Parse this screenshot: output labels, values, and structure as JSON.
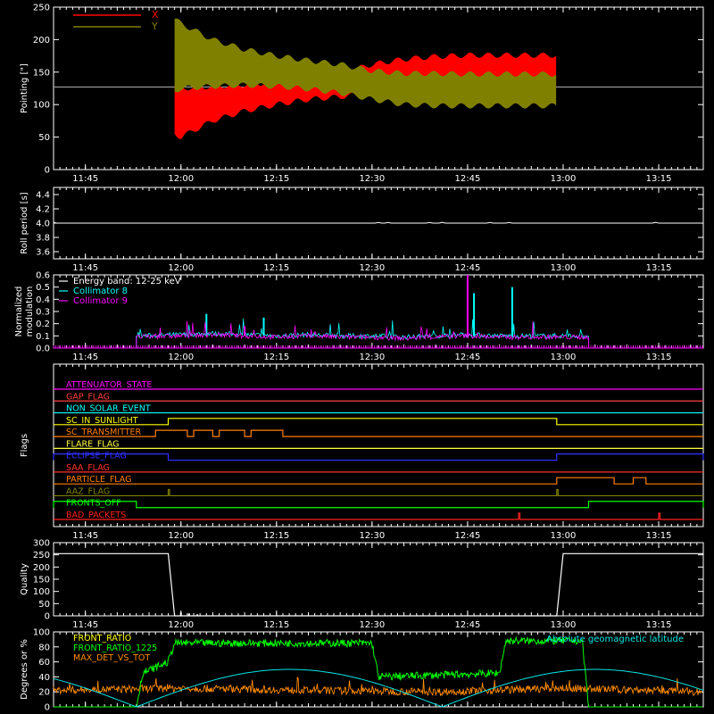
{
  "colors": {
    "background": "#000000",
    "axis": "#ffffff",
    "x_pointing": "#ff0000",
    "y_pointing": "#808000",
    "collimator8": "#00ffff",
    "collimator9": "#ff00ff",
    "green": "#00ff00",
    "orange": "#ff8c00",
    "cyan": "#00e5e5"
  },
  "time_axis": {
    "start": "11:40",
    "end": "13:22",
    "ticks": [
      "11:45",
      "12:00",
      "12:15",
      "12:30",
      "12:45",
      "13:00",
      "13:15"
    ]
  },
  "chart_data": [
    {
      "id": "pointing",
      "type": "area",
      "ylabel": "Pointing [\"]",
      "ylim": [
        0,
        250
      ],
      "yticks": [
        0,
        50,
        100,
        150,
        200,
        250
      ],
      "x_range": [
        "11:40",
        "13:22"
      ],
      "reference_line": {
        "value": 127,
        "from": "11:40",
        "to": "13:22"
      },
      "legend": {
        "placement": "top-left",
        "entries": [
          "X",
          "Y"
        ]
      },
      "series": [
        {
          "name": "X",
          "x": [
            "11:59",
            "12:00",
            "12:05",
            "12:10",
            "12:15",
            "12:20",
            "12:25",
            "12:30",
            "12:35",
            "12:40",
            "12:45",
            "12:50",
            "12:55",
            "12:59"
          ],
          "upper": [
            130,
            125,
            128,
            131,
            135,
            140,
            148,
            162,
            170,
            174,
            176,
            176,
            176,
            176
          ],
          "lower": [
            55,
            50,
            75,
            90,
            100,
            108,
            112,
            118,
            123,
            126,
            126,
            127,
            127,
            127
          ]
        },
        {
          "name": "Y",
          "x": [
            "11:59",
            "12:00",
            "12:05",
            "12:10",
            "12:15",
            "12:20",
            "12:25",
            "12:30",
            "12:35",
            "12:40",
            "12:45",
            "12:50",
            "12:55",
            "12:59"
          ],
          "upper": [
            232,
            225,
            200,
            185,
            175,
            168,
            162,
            152,
            148,
            148,
            147,
            147,
            147,
            147
          ],
          "lower": [
            120,
            125,
            128,
            130,
            128,
            124,
            118,
            108,
            100,
            98,
            98,
            98,
            98,
            98
          ]
        }
      ]
    },
    {
      "id": "roll-period",
      "type": "line",
      "ylabel": "Roll period [s]",
      "ylim": [
        3.5,
        4.5
      ],
      "yticks": [
        3.6,
        3.8,
        4.0,
        4.2,
        4.4
      ],
      "series": [
        {
          "x": [
            "11:40",
            "12:00",
            "12:30",
            "13:00",
            "13:22"
          ],
          "values": [
            4.0,
            4.0,
            4.0,
            4.0,
            4.0
          ]
        }
      ]
    },
    {
      "id": "modulation",
      "type": "line",
      "ylabel": [
        "Normalized",
        "modulation"
      ],
      "ylim": [
        0,
        0.6
      ],
      "yticks": [
        0.0,
        0.1,
        0.2,
        0.3,
        0.4,
        0.5,
        0.6
      ],
      "legend": {
        "placement": "top-left",
        "entries": [
          "Energy band: 12-25 keV",
          "Collimator 8",
          "Collimator 9"
        ]
      },
      "series": [
        {
          "name": "Collimator 8",
          "x": [
            "11:53",
            "12:00",
            "12:05",
            "12:10",
            "12:15",
            "12:20",
            "12:25",
            "12:30",
            "12:35",
            "12:40",
            "12:45",
            "12:50",
            "12:55",
            "13:00",
            "13:04"
          ],
          "values": [
            0.1,
            0.11,
            0.12,
            0.11,
            0.1,
            0.11,
            0.1,
            0.1,
            0.09,
            0.1,
            0.11,
            0.1,
            0.1,
            0.1,
            0.1
          ],
          "spikes": [
            {
              "x": "12:04",
              "value": 0.28
            },
            {
              "x": "12:13",
              "value": 0.25
            },
            {
              "x": "12:46",
              "value": 0.45
            },
            {
              "x": "12:52",
              "value": 0.5
            }
          ]
        },
        {
          "name": "Collimator 9",
          "x": [
            "11:53",
            "12:00",
            "12:05",
            "12:10",
            "12:15",
            "12:20",
            "12:25",
            "12:30",
            "12:35",
            "12:40",
            "12:45",
            "12:50",
            "12:55",
            "13:00",
            "13:04"
          ],
          "values": [
            0.09,
            0.1,
            0.11,
            0.1,
            0.09,
            0.1,
            0.09,
            0.09,
            0.08,
            0.09,
            0.1,
            0.09,
            0.09,
            0.09,
            0.09
          ],
          "spikes": [
            {
              "x": "12:45",
              "value": 0.6
            },
            {
              "x": "12:10",
              "value": 0.18
            }
          ]
        }
      ]
    },
    {
      "id": "flags",
      "type": "line",
      "ylabel": "Flags",
      "series": [
        {
          "name": "ATTENUATOR_STATE",
          "color": "#ff00ff",
          "segments": []
        },
        {
          "name": "GAP_FLAG",
          "color": "#ff4040",
          "segments": []
        },
        {
          "name": "NON_SOLAR_EVENT",
          "color": "#00ffff",
          "segments": []
        },
        {
          "name": "SC_IN_SUNLIGHT",
          "color": "#ffff00",
          "segments": [
            {
              "from": "11:58",
              "to": "12:59"
            }
          ]
        },
        {
          "name": "SC_TRANSMITTER",
          "color": "#ff8000",
          "segments": [
            {
              "from": "11:56",
              "to": "12:01"
            },
            {
              "from": "12:02",
              "to": "12:05"
            },
            {
              "from": "12:06",
              "to": "12:10"
            },
            {
              "from": "12:11",
              "to": "12:16"
            }
          ]
        },
        {
          "name": "FLARE_FLAG",
          "color": "#ffff40",
          "segments": []
        },
        {
          "name": "ECLIPSE_FLAG",
          "color": "#3030ff",
          "segments": [
            {
              "from": "11:40",
              "to": "11:58"
            },
            {
              "from": "12:59",
              "to": "13:22"
            }
          ]
        },
        {
          "name": "SAA_FLAG",
          "color": "#ff3030",
          "segments": []
        },
        {
          "name": "PARTICLE_FLAG",
          "color": "#ff8000",
          "segments": [
            {
              "from": "12:59",
              "to": "13:08"
            },
            {
              "from": "13:11",
              "to": "13:13"
            }
          ]
        },
        {
          "name": "AAZ_FLAG",
          "color": "#808000",
          "segments": [
            {
              "from": "11:58",
              "to": "11:58"
            },
            {
              "from": "12:59",
              "to": "12:59"
            }
          ]
        },
        {
          "name": "FRONTS_OFF",
          "color": "#00ff00",
          "segments": [
            {
              "from": "11:40",
              "to": "11:53"
            },
            {
              "from": "13:04",
              "to": "13:22"
            }
          ]
        },
        {
          "name": "BAD_PACKETS",
          "color": "#ff2020",
          "segments": [
            {
              "from": "12:53",
              "to": "12:53"
            },
            {
              "from": "13:15",
              "to": "13:15"
            }
          ]
        }
      ]
    },
    {
      "id": "quality",
      "type": "line",
      "ylabel": "Quality",
      "ylim": [
        0,
        300
      ],
      "yticks": [
        0,
        50,
        100,
        150,
        200,
        250,
        300
      ],
      "series": [
        {
          "x": [
            "11:40",
            "11:58",
            "11:59",
            "12:59",
            "13:00",
            "13:22"
          ],
          "values": [
            255,
            255,
            0,
            0,
            255,
            255
          ]
        }
      ]
    },
    {
      "id": "ratios",
      "type": "line",
      "ylabel": "Degrees or %",
      "ylim": [
        0,
        100
      ],
      "yticks": [
        0,
        20,
        40,
        60,
        80,
        100
      ],
      "legend": {
        "placement": "top-left",
        "entries": [
          "FRONT_RATIO",
          "FRONT_RATIO_1225",
          "MAX_DET_VS_TOT",
          "Absolute geomagnetic latitude"
        ]
      },
      "series": [
        {
          "name": "FRONT_RATIO",
          "x": [
            "11:40",
            "11:53",
            "11:54",
            "11:58",
            "11:59",
            "12:30",
            "12:31",
            "12:50",
            "12:51",
            "13:03",
            "13:04",
            "13:22"
          ],
          "values": [
            0,
            0,
            45,
            60,
            85,
            85,
            40,
            45,
            88,
            88,
            0,
            0
          ]
        },
        {
          "name": "FRONT_RATIO_1225",
          "x": [
            "11:53",
            "11:58",
            "12:30",
            "12:50",
            "13:03"
          ],
          "values": [
            42,
            80,
            38,
            82,
            85
          ]
        },
        {
          "name": "MAX_DET_VS_TOT",
          "x": [
            "11:40",
            "12:00",
            "12:20",
            "12:40",
            "13:00",
            "13:22"
          ],
          "values": [
            22,
            25,
            22,
            20,
            25,
            20
          ]
        },
        {
          "name": "Absolute geomagnetic latitude",
          "x": [
            "11:40",
            "11:53",
            "12:17",
            "12:40",
            "13:03",
            "13:22"
          ],
          "values": [
            25,
            0,
            50,
            0,
            50,
            22
          ]
        }
      ]
    }
  ]
}
